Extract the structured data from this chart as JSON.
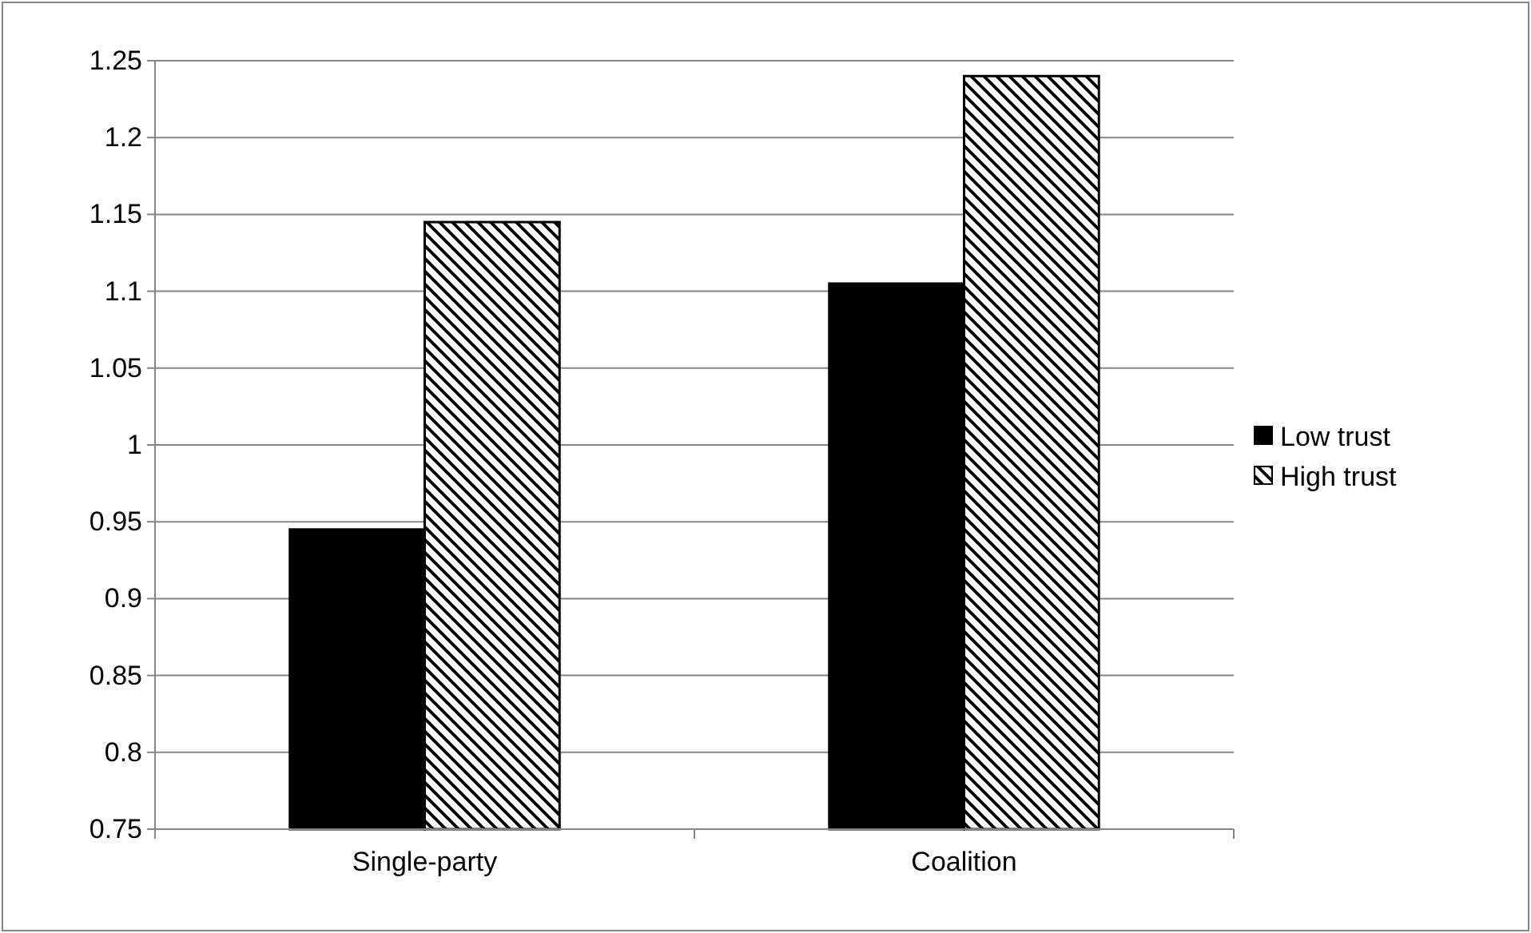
{
  "chart_data": {
    "type": "bar",
    "categories": [
      "Single-party",
      "Coalition"
    ],
    "series": [
      {
        "name": "Low trust",
        "color": "#000000",
        "values": [
          0.945,
          1.105
        ]
      },
      {
        "name": "High trust",
        "color": "#000000",
        "values": [
          1.145,
          1.24
        ]
      }
    ],
    "ylim": [
      0.75,
      1.25
    ],
    "yticks": [
      0.75,
      0.8,
      0.85,
      0.9,
      0.95,
      1,
      1.05,
      1.1,
      1.15,
      1.2,
      1.25
    ],
    "grid": "y",
    "legend": "right"
  }
}
